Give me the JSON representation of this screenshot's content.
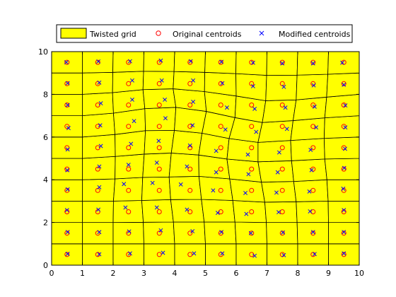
{
  "chart_data": {
    "type": "scatter",
    "xlim": [
      0,
      10
    ],
    "ylim": [
      0,
      10
    ],
    "x_ticks": [
      0,
      1,
      2,
      3,
      4,
      5,
      6,
      7,
      8,
      9,
      10
    ],
    "y_ticks": [
      0,
      2,
      4,
      6,
      8,
      10
    ],
    "x_tick_labels": [
      "0",
      "1",
      "2",
      "3",
      "4",
      "5",
      "6",
      "7",
      "8",
      "9",
      "10"
    ],
    "y_tick_labels": [
      "0",
      "2",
      "4",
      "6",
      "8",
      "10"
    ],
    "grid": false,
    "legend_position": "top",
    "legend": [
      {
        "label": "Twisted grid",
        "marker": "filled-rect",
        "color": "#ffff00"
      },
      {
        "label": "Original centroids",
        "marker": "circle",
        "color": "#ff0000"
      },
      {
        "label": "Modified centroids",
        "marker": "x",
        "color": "#0000ff"
      }
    ],
    "colors": {
      "fill": "#ffff00",
      "edges": "#000000",
      "original": "#ff0000",
      "modified": "#0000ff"
    },
    "grid_cells": {
      "nx": 10,
      "ny": 10,
      "xlim": [
        0,
        10
      ],
      "ylim": [
        0,
        10
      ]
    },
    "twisted_grid": {
      "vertex_x": [
        [
          0,
          1,
          2,
          3,
          4,
          5,
          6,
          7,
          8,
          9,
          10
        ],
        [
          0,
          1,
          2,
          3,
          4,
          5,
          6,
          7,
          8,
          9,
          10
        ],
        [
          0,
          1,
          2.0,
          2.98,
          3.96,
          4.96,
          5.96,
          6.98,
          7.98,
          9,
          10
        ],
        [
          0,
          1,
          2.01,
          2.93,
          3.87,
          4.87,
          5.89,
          6.93,
          7.95,
          8.99,
          10
        ],
        [
          0,
          1,
          2.06,
          2.96,
          3.82,
          4.79,
          5.79,
          6.82,
          7.87,
          8.95,
          10
        ],
        [
          0,
          1,
          2.07,
          3.01,
          3.89,
          4.78,
          5.7,
          6.71,
          7.8,
          8.88,
          10
        ],
        [
          0,
          1,
          2.06,
          3.05,
          3.99,
          4.89,
          5.77,
          6.71,
          7.77,
          8.86,
          10
        ],
        [
          0,
          1,
          2.01,
          3.03,
          4.04,
          5.03,
          5.96,
          6.85,
          7.85,
          8.88,
          10
        ],
        [
          0,
          1,
          1.98,
          2.97,
          3.95,
          4.97,
          6.0,
          6.96,
          7.95,
          8.94,
          10
        ],
        [
          0,
          1,
          1.99,
          2.99,
          3.98,
          4.98,
          5.99,
          6.99,
          7.98,
          8.98,
          10
        ],
        [
          0,
          1,
          2,
          3,
          4,
          5,
          6,
          7,
          8,
          9,
          10
        ]
      ],
      "vertex_y": [
        [
          0,
          0,
          0,
          0,
          0,
          0,
          0,
          0,
          0,
          0,
          0
        ],
        [
          1,
          1,
          1,
          1,
          1,
          1,
          1,
          1,
          1,
          1,
          1
        ],
        [
          2,
          2,
          2.0,
          2.01,
          2.02,
          2.02,
          2.02,
          2.0,
          2.0,
          2,
          2
        ],
        [
          3,
          3,
          3.0,
          3.03,
          3.07,
          3.08,
          3.03,
          2.95,
          2.97,
          3,
          3
        ],
        [
          4,
          4,
          4.04,
          4.11,
          4.13,
          4.16,
          4.04,
          3.89,
          3.92,
          4,
          4
        ],
        [
          5,
          5,
          5.09,
          5.2,
          5.25,
          5.16,
          4.97,
          4.84,
          4.89,
          4.97,
          5
        ],
        [
          6,
          6,
          6.12,
          6.3,
          6.31,
          6.18,
          5.93,
          5.75,
          5.84,
          5.94,
          6
        ],
        [
          7,
          7,
          7.12,
          7.33,
          7.39,
          7.2,
          6.91,
          6.68,
          6.77,
          6.9,
          7
        ],
        [
          8,
          8,
          8.08,
          8.22,
          8.26,
          8.13,
          7.92,
          7.7,
          7.74,
          7.87,
          8
        ],
        [
          9,
          9,
          9.03,
          9.08,
          9.07,
          9.03,
          8.97,
          8.89,
          8.9,
          8.94,
          9
        ],
        [
          10,
          10,
          10,
          10,
          10,
          10,
          10,
          10,
          10,
          10,
          10
        ]
      ]
    },
    "original_centroids": {
      "x": [
        0.5,
        1.5,
        2.5,
        3.5,
        4.5,
        5.5,
        6.5,
        7.5,
        8.5,
        9.5
      ],
      "y": [
        0.5,
        1.5,
        2.5,
        3.5,
        4.5,
        5.5,
        6.5,
        7.5,
        8.5,
        9.5
      ]
    },
    "modified_centroids": [
      [
        [
          0.52,
          0.53
        ],
        [
          1.55,
          0.51
        ],
        [
          2.55,
          0.55
        ],
        [
          3.62,
          0.58
        ],
        [
          4.63,
          0.55
        ],
        [
          5.55,
          0.55
        ],
        [
          6.6,
          0.44
        ],
        [
          7.55,
          0.47
        ],
        [
          8.55,
          0.52
        ],
        [
          9.5,
          0.55
        ]
      ],
      [
        [
          0.52,
          1.55
        ],
        [
          1.55,
          1.55
        ],
        [
          2.52,
          1.58
        ],
        [
          3.55,
          1.63
        ],
        [
          4.58,
          1.59
        ],
        [
          5.52,
          1.55
        ],
        [
          6.48,
          1.5
        ],
        [
          7.52,
          1.53
        ],
        [
          8.5,
          1.55
        ],
        [
          9.5,
          1.55
        ]
      ],
      [
        [
          0.5,
          2.58
        ],
        [
          1.52,
          2.6
        ],
        [
          2.4,
          2.7
        ],
        [
          3.42,
          2.7
        ],
        [
          4.4,
          2.6
        ],
        [
          5.4,
          2.45
        ],
        [
          6.33,
          2.4
        ],
        [
          7.38,
          2.48
        ],
        [
          8.4,
          2.52
        ],
        [
          9.5,
          2.58
        ]
      ],
      [
        [
          0.52,
          3.55
        ],
        [
          1.55,
          3.65
        ],
        [
          2.35,
          3.8
        ],
        [
          3.28,
          3.85
        ],
        [
          4.2,
          3.78
        ],
        [
          5.25,
          3.5
        ],
        [
          6.3,
          3.38
        ],
        [
          7.31,
          3.4
        ],
        [
          8.38,
          3.45
        ],
        [
          9.48,
          3.58
        ]
      ],
      [
        [
          0.51,
          4.45
        ],
        [
          1.55,
          4.62
        ],
        [
          2.5,
          4.7
        ],
        [
          3.42,
          4.8
        ],
        [
          4.4,
          4.62
        ],
        [
          5.35,
          4.35
        ],
        [
          6.4,
          4.26
        ],
        [
          7.35,
          4.35
        ],
        [
          8.45,
          4.45
        ],
        [
          9.51,
          4.55
        ]
      ],
      [
        [
          0.52,
          5.42
        ],
        [
          1.6,
          5.58
        ],
        [
          2.58,
          5.68
        ],
        [
          3.48,
          5.82
        ],
        [
          4.5,
          5.6
        ],
        [
          5.35,
          5.35
        ],
        [
          6.38,
          5.18
        ],
        [
          7.4,
          5.28
        ],
        [
          8.42,
          5.4
        ],
        [
          9.54,
          5.45
        ]
      ],
      [
        [
          0.55,
          6.42
        ],
        [
          1.58,
          6.55
        ],
        [
          2.68,
          6.75
        ],
        [
          3.7,
          6.88
        ],
        [
          4.58,
          6.55
        ],
        [
          5.65,
          6.35
        ],
        [
          6.65,
          6.24
        ],
        [
          7.65,
          6.38
        ],
        [
          8.6,
          6.45
        ],
        [
          9.55,
          6.45
        ]
      ],
      [
        [
          0.52,
          7.5
        ],
        [
          1.6,
          7.58
        ],
        [
          2.62,
          7.75
        ],
        [
          3.68,
          7.75
        ],
        [
          4.6,
          7.65
        ],
        [
          5.7,
          7.38
        ],
        [
          6.6,
          7.32
        ],
        [
          7.6,
          7.38
        ],
        [
          8.55,
          7.42
        ],
        [
          9.55,
          7.48
        ]
      ],
      [
        [
          0.52,
          8.52
        ],
        [
          1.55,
          8.55
        ],
        [
          2.62,
          8.65
        ],
        [
          3.58,
          8.65
        ],
        [
          4.6,
          8.65
        ],
        [
          5.55,
          8.52
        ],
        [
          6.55,
          8.38
        ],
        [
          7.55,
          8.35
        ],
        [
          8.52,
          8.42
        ],
        [
          9.5,
          8.45
        ]
      ],
      [
        [
          0.48,
          9.5
        ],
        [
          1.52,
          9.54
        ],
        [
          2.55,
          9.55
        ],
        [
          3.55,
          9.58
        ],
        [
          4.52,
          9.55
        ],
        [
          5.52,
          9.52
        ],
        [
          6.55,
          9.48
        ],
        [
          7.5,
          9.45
        ],
        [
          8.5,
          9.45
        ],
        [
          9.45,
          9.48
        ]
      ]
    ]
  }
}
